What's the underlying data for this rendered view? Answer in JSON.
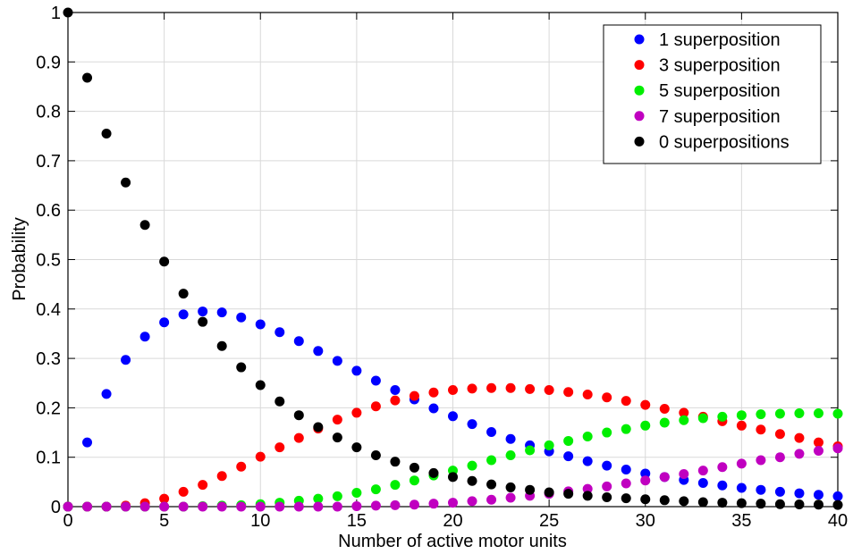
{
  "chart_data": {
    "type": "scatter",
    "xlabel": "Number of active motor units",
    "ylabel": "Probability",
    "xlim": [
      0,
      40
    ],
    "ylim": [
      0,
      1
    ],
    "xticks": [
      0,
      5,
      10,
      15,
      20,
      25,
      30,
      35,
      40
    ],
    "xtick_labels": [
      "0",
      "5",
      "10",
      "15",
      "20",
      "25",
      "30",
      "35",
      "40"
    ],
    "yticks": [
      0,
      0.1,
      0.2,
      0.3,
      0.4,
      0.5,
      0.6,
      0.7,
      0.8,
      0.9,
      1
    ],
    "ytick_labels": [
      "0",
      "0.1",
      "0.2",
      "0.3",
      "0.4",
      "0.5",
      "0.6",
      "0.7",
      "0.8",
      "0.9",
      "1"
    ],
    "grid": true,
    "legend_position": "top-right",
    "x": [
      0,
      1,
      2,
      3,
      4,
      5,
      6,
      7,
      8,
      9,
      10,
      11,
      12,
      13,
      14,
      15,
      16,
      17,
      18,
      19,
      20,
      21,
      22,
      23,
      24,
      25,
      26,
      27,
      28,
      29,
      30,
      31,
      32,
      33,
      34,
      35,
      36,
      37,
      38,
      39,
      40
    ],
    "series": [
      {
        "name": "1 superposition",
        "color": "#0000ff",
        "values": [
          0,
          0.13,
          0.228,
          0.297,
          0.344,
          0.373,
          0.389,
          0.395,
          0.393,
          0.383,
          0.369,
          0.353,
          0.335,
          0.315,
          0.295,
          0.275,
          0.255,
          0.236,
          0.217,
          0.199,
          0.183,
          0.167,
          0.151,
          0.137,
          0.124,
          0.112,
          0.102,
          0.092,
          0.083,
          0.075,
          0.067,
          0.06,
          0.054,
          0.048,
          0.043,
          0.038,
          0.034,
          0.03,
          0.027,
          0.024,
          0.021
        ]
      },
      {
        "name": "3 superposition",
        "color": "#ff0000",
        "values": [
          0,
          0,
          0,
          0.002,
          0.007,
          0.016,
          0.03,
          0.044,
          0.062,
          0.081,
          0.101,
          0.12,
          0.139,
          0.158,
          0.176,
          0.19,
          0.203,
          0.215,
          0.224,
          0.231,
          0.236,
          0.239,
          0.24,
          0.24,
          0.238,
          0.236,
          0.232,
          0.227,
          0.221,
          0.214,
          0.206,
          0.198,
          0.19,
          0.182,
          0.173,
          0.164,
          0.156,
          0.147,
          0.139,
          0.13,
          0.122
        ]
      },
      {
        "name": "5 superposition",
        "color": "#00ee00",
        "values": [
          0,
          0,
          0,
          0,
          0,
          0,
          0,
          0.001,
          0.002,
          0.003,
          0.005,
          0.008,
          0.012,
          0.016,
          0.021,
          0.028,
          0.035,
          0.044,
          0.053,
          0.063,
          0.073,
          0.083,
          0.094,
          0.104,
          0.114,
          0.124,
          0.133,
          0.142,
          0.15,
          0.157,
          0.164,
          0.17,
          0.175,
          0.179,
          0.182,
          0.185,
          0.187,
          0.188,
          0.189,
          0.189,
          0.188
        ]
      },
      {
        "name": "7 superposition",
        "color": "#c000c0",
        "values": [
          0,
          0,
          0,
          0,
          0,
          0,
          0,
          0,
          0,
          0,
          0,
          0,
          0,
          0,
          0,
          0.001,
          0.002,
          0.003,
          0.004,
          0.006,
          0.008,
          0.011,
          0.014,
          0.018,
          0.022,
          0.026,
          0.031,
          0.036,
          0.041,
          0.047,
          0.053,
          0.06,
          0.066,
          0.073,
          0.08,
          0.087,
          0.094,
          0.1,
          0.107,
          0.113,
          0.118
        ]
      },
      {
        "name": "0 superpositions",
        "color": "#000000",
        "values": [
          1,
          0.868,
          0.755,
          0.656,
          0.57,
          0.496,
          0.431,
          0.374,
          0.325,
          0.282,
          0.246,
          0.213,
          0.185,
          0.161,
          0.14,
          0.12,
          0.104,
          0.091,
          0.079,
          0.068,
          0.06,
          0.052,
          0.045,
          0.039,
          0.034,
          0.029,
          0.026,
          0.022,
          0.019,
          0.017,
          0.015,
          0.013,
          0.011,
          0.009,
          0.008,
          0.007,
          0.006,
          0.005,
          0.0045,
          0.004,
          0.0035
        ]
      }
    ]
  }
}
